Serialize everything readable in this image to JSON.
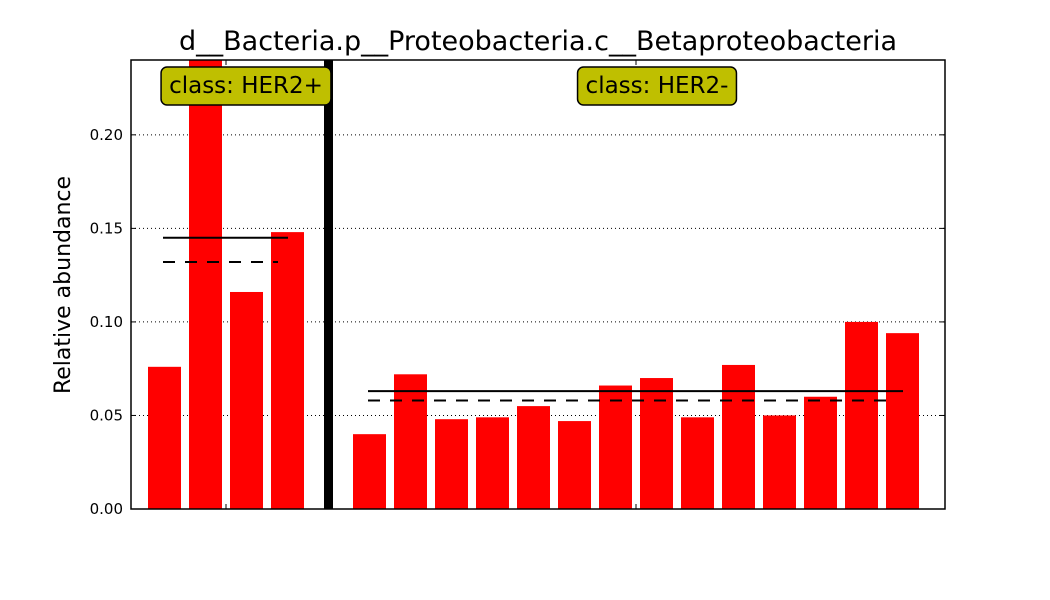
{
  "chart_data": {
    "type": "bar",
    "title": "d__Bacteria.p__Proteobacteria.c__Betaproteobacteria",
    "ylabel": "Relative abundance",
    "xlabel": "",
    "ylim": [
      0,
      0.24
    ],
    "yticks": [
      "0.00",
      "0.05",
      "0.10",
      "0.15",
      "0.20"
    ],
    "ytick_values": [
      0,
      0.05,
      0.1,
      0.15,
      0.2
    ],
    "grid": "horizontal-dotted",
    "bar_color": "#ff0000",
    "separator_color": "#000000",
    "box_color": "#bfbf00",
    "groups": [
      {
        "label": "class: HER2+",
        "values": [
          0.076,
          0.24,
          0.116,
          0.148
        ],
        "mean": 0.145,
        "median": 0.132
      },
      {
        "label": "class: HER2-",
        "values": [
          0.04,
          0.072,
          0.048,
          0.049,
          0.055,
          0.047,
          0.066,
          0.07,
          0.049,
          0.077,
          0.05,
          0.06,
          0.1,
          0.094
        ],
        "mean": 0.063,
        "median": 0.058
      }
    ]
  }
}
